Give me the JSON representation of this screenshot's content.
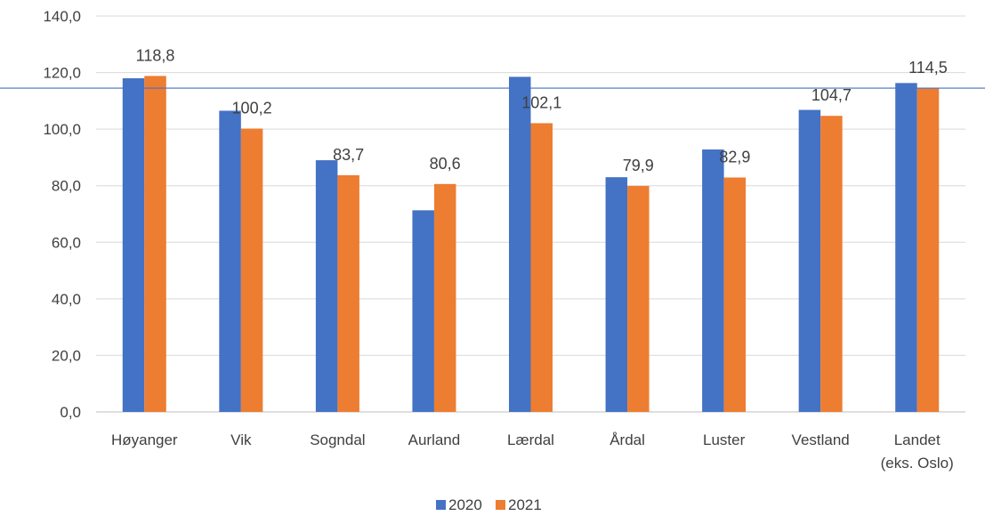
{
  "chart_data": {
    "type": "bar",
    "categories": [
      "Høyanger",
      "Vik",
      "Sogndal",
      "Aurland",
      "Lærdal",
      "Årdal",
      "Luster",
      "Vestland",
      "Landet (eks. Oslo)"
    ],
    "series": [
      {
        "name": "2020",
        "color": "#4472C4",
        "values": [
          118.0,
          106.5,
          89.0,
          71.3,
          118.5,
          83.0,
          92.8,
          106.8,
          116.3
        ]
      },
      {
        "name": "2021",
        "color": "#ED7D31",
        "values": [
          118.8,
          100.2,
          83.7,
          80.6,
          102.1,
          79.9,
          82.9,
          104.7,
          114.5
        ]
      }
    ],
    "data_labels": [
      "118,8",
      "100,2",
      "83,7",
      "80,6",
      "102,1",
      "79,9",
      "82,9",
      "104,7",
      "114,5"
    ],
    "reference_line": {
      "value": 114.5,
      "color": "#4472C4"
    },
    "ylim": [
      0,
      140
    ],
    "yticks": [
      "0,0",
      "20,0",
      "40,0",
      "60,0",
      "80,0",
      "100,0",
      "120,0",
      "140,0"
    ],
    "grid": true,
    "legend": "bottom-center"
  }
}
